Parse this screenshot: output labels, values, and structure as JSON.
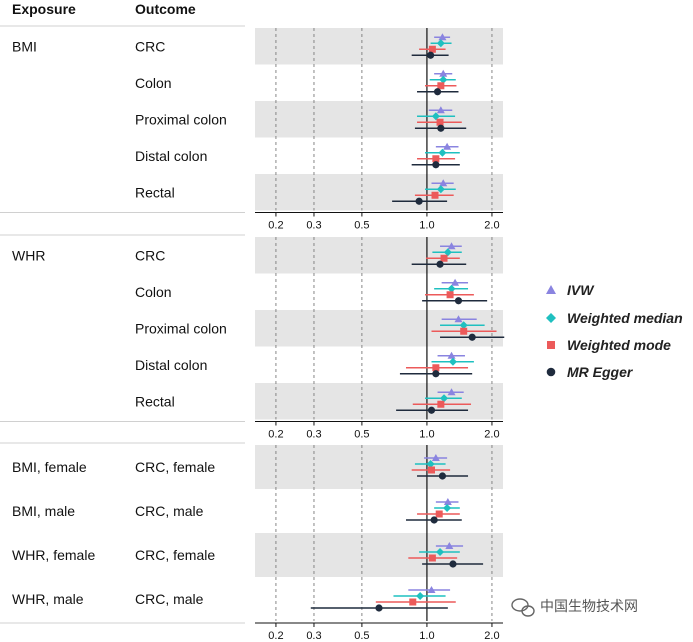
{
  "headers": {
    "exposure": "Exposure",
    "outcome": "Outcome"
  },
  "legend": [
    "IVW",
    "Weighted median",
    "Weighted mode",
    "MR Egger"
  ],
  "watermark": "中国生物技术网",
  "colors": {
    "IVW": "#8a84e0",
    "Weighted median": "#1fc0c0",
    "Weighted mode": "#ec5a5a",
    "MR Egger": "#1f2b3d",
    "band": "#e5e5e5",
    "grid": "#7a7a7a",
    "axis": "#111111"
  },
  "chart_data": {
    "type": "forest",
    "x_scale": "log",
    "xlim": [
      0.16,
      2.25
    ],
    "xticks": [
      "0.2",
      "0.3",
      "0.5",
      "1.0",
      "2.0"
    ],
    "reference_line": 1.0,
    "methods": [
      "IVW",
      "Weighted median",
      "Weighted mode",
      "MR Egger"
    ],
    "panels": [
      {
        "rows": [
          {
            "exposure": "BMI",
            "outcome": "CRC",
            "est": {
              "IVW": [
                1.18,
                1.08,
                1.28
              ],
              "Weighted median": [
                1.16,
                1.04,
                1.3
              ],
              "Weighted mode": [
                1.06,
                0.92,
                1.22
              ],
              "MR Egger": [
                1.04,
                0.85,
                1.26
              ]
            }
          },
          {
            "exposure": "",
            "outcome": "Colon",
            "est": {
              "IVW": [
                1.19,
                1.08,
                1.31
              ],
              "Weighted median": [
                1.19,
                1.03,
                1.36
              ],
              "Weighted mode": [
                1.16,
                0.98,
                1.37
              ],
              "MR Egger": [
                1.12,
                0.9,
                1.4
              ]
            }
          },
          {
            "exposure": "",
            "outcome": "Proximal colon",
            "est": {
              "IVW": [
                1.16,
                1.02,
                1.31
              ],
              "Weighted median": [
                1.1,
                0.9,
                1.35
              ],
              "Weighted mode": [
                1.15,
                0.9,
                1.45
              ],
              "MR Egger": [
                1.16,
                0.88,
                1.52
              ]
            }
          },
          {
            "exposure": "",
            "outcome": "Distal colon",
            "est": {
              "IVW": [
                1.24,
                1.1,
                1.4
              ],
              "Weighted median": [
                1.18,
                0.98,
                1.42
              ],
              "Weighted mode": [
                1.1,
                0.9,
                1.35
              ],
              "MR Egger": [
                1.1,
                0.85,
                1.42
              ]
            }
          },
          {
            "exposure": "",
            "outcome": "Rectal",
            "est": {
              "IVW": [
                1.19,
                1.05,
                1.33
              ],
              "Weighted median": [
                1.16,
                0.98,
                1.36
              ],
              "Weighted mode": [
                1.09,
                0.88,
                1.33
              ],
              "MR Egger": [
                0.92,
                0.69,
                1.24
              ]
            }
          }
        ]
      },
      {
        "rows": [
          {
            "exposure": "WHR",
            "outcome": "CRC",
            "est": {
              "IVW": [
                1.3,
                1.15,
                1.45
              ],
              "Weighted median": [
                1.25,
                1.06,
                1.45
              ],
              "Weighted mode": [
                1.2,
                0.99,
                1.42
              ],
              "MR Egger": [
                1.15,
                0.85,
                1.52
              ]
            }
          },
          {
            "exposure": "",
            "outcome": "Colon",
            "est": {
              "IVW": [
                1.35,
                1.17,
                1.55
              ],
              "Weighted median": [
                1.3,
                1.08,
                1.55
              ],
              "Weighted mode": [
                1.28,
                0.98,
                1.65
              ],
              "MR Egger": [
                1.4,
                0.95,
                1.9
              ]
            }
          },
          {
            "exposure": "",
            "outcome": "Proximal colon",
            "est": {
              "IVW": [
                1.4,
                1.17,
                1.7
              ],
              "Weighted median": [
                1.48,
                1.15,
                1.85
              ],
              "Weighted mode": [
                1.48,
                1.05,
                2.1
              ],
              "MR Egger": [
                1.62,
                1.15,
                2.28
              ]
            }
          },
          {
            "exposure": "",
            "outcome": "Distal colon",
            "est": {
              "IVW": [
                1.3,
                1.12,
                1.5
              ],
              "Weighted median": [
                1.32,
                1.05,
                1.65
              ],
              "Weighted mode": [
                1.1,
                0.8,
                1.55
              ],
              "MR Egger": [
                1.1,
                0.75,
                1.62
              ]
            }
          },
          {
            "exposure": "",
            "outcome": "Rectal",
            "est": {
              "IVW": [
                1.3,
                1.12,
                1.48
              ],
              "Weighted median": [
                1.2,
                0.98,
                1.45
              ],
              "Weighted mode": [
                1.16,
                0.86,
                1.6
              ],
              "MR Egger": [
                1.05,
                0.72,
                1.55
              ]
            }
          }
        ]
      },
      {
        "rows": [
          {
            "exposure": "BMI, female",
            "outcome": "CRC, female",
            "est": {
              "IVW": [
                1.1,
                0.97,
                1.24
              ],
              "Weighted median": [
                1.04,
                0.88,
                1.22
              ],
              "Weighted mode": [
                1.05,
                0.85,
                1.28
              ],
              "MR Egger": [
                1.18,
                0.9,
                1.55
              ]
            }
          },
          {
            "exposure": "BMI, male",
            "outcome": "CRC, male",
            "est": {
              "IVW": [
                1.25,
                1.1,
                1.4
              ],
              "Weighted median": [
                1.24,
                1.08,
                1.42
              ],
              "Weighted mode": [
                1.14,
                0.9,
                1.42
              ],
              "MR Egger": [
                1.08,
                0.8,
                1.45
              ]
            }
          },
          {
            "exposure": "WHR, female",
            "outcome": "CRC, female",
            "est": {
              "IVW": [
                1.27,
                1.1,
                1.47
              ],
              "Weighted median": [
                1.15,
                0.92,
                1.42
              ],
              "Weighted mode": [
                1.06,
                0.82,
                1.38
              ],
              "MR Egger": [
                1.32,
                0.95,
                1.82
              ]
            }
          },
          {
            "exposure": "WHR, male",
            "outcome": "CRC, male",
            "est": {
              "IVW": [
                1.05,
                0.82,
                1.28
              ],
              "Weighted median": [
                0.93,
                0.7,
                1.22
              ],
              "Weighted mode": [
                0.86,
                0.58,
                1.36
              ],
              "MR Egger": [
                0.6,
                0.29,
                1.25
              ]
            }
          }
        ]
      }
    ]
  }
}
